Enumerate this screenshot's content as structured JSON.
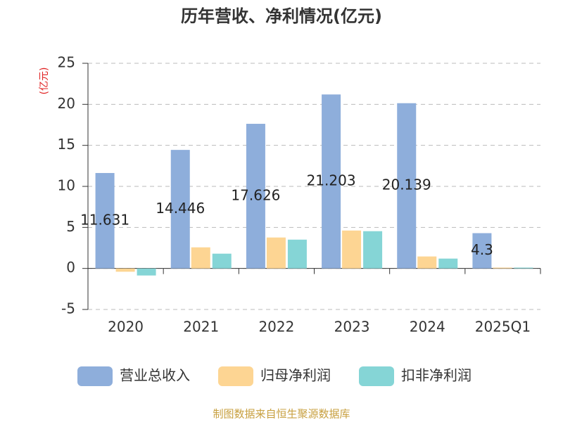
{
  "chart_data": {
    "type": "bar",
    "title": "历年营收、净利情况(亿元)",
    "y_label": "(亿元)",
    "source": "制图数据来自恒生聚源数据库",
    "categories": [
      "2020",
      "2021",
      "2022",
      "2023",
      "2024",
      "2025Q1"
    ],
    "series": [
      {
        "name": "营业总收入",
        "color": "#8eaedb",
        "values": [
          11.631,
          14.446,
          17.626,
          21.203,
          20.139,
          4.3
        ]
      },
      {
        "name": "归母净利润",
        "color": "#fdd593",
        "values": [
          -0.4,
          2.57,
          3.77,
          4.62,
          1.46,
          0.1
        ]
      },
      {
        "name": "扣非净利润",
        "color": "#85d5d6",
        "values": [
          -0.86,
          1.8,
          3.51,
          4.54,
          1.2,
          0.1
        ]
      }
    ],
    "ylim": [
      -5,
      25
    ],
    "yticks": [
      -5,
      0,
      5,
      10,
      15,
      20,
      25
    ],
    "grid": true
  }
}
